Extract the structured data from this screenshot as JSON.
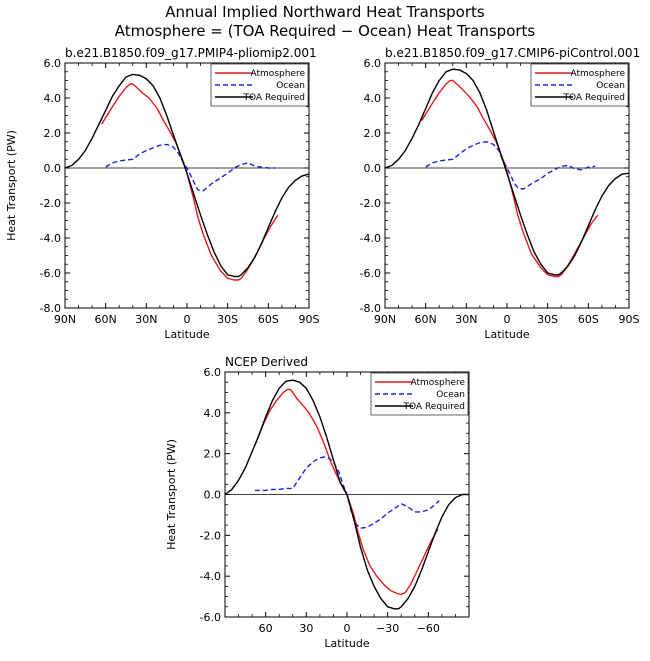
{
  "figure": {
    "title_line1": "Annual Implied Northward Heat Transports",
    "title_line2": "Atmosphere = (TOA Required − Ocean) Heat Transports"
  },
  "chart_data": [
    {
      "type": "line",
      "title": "b.e21.B1850.f09_g17.PMIP4-pliomip2.001",
      "xlabel": "Latitude",
      "ylabel": "Heat Transport (PW)",
      "xlim": [
        90,
        -90
      ],
      "ylim": [
        -8,
        6
      ],
      "xticks": [
        90,
        60,
        30,
        0,
        -30,
        -60,
        -90
      ],
      "xticklabels": [
        "90N",
        "60N",
        "30N",
        "0",
        "30S",
        "60S",
        "90S"
      ],
      "yticks": [
        6,
        4,
        2,
        0,
        -2,
        -4,
        -6,
        -8
      ],
      "yticklabels": [
        "6.0",
        "4.0",
        "2.0",
        "0.0",
        "-2.0",
        "-4.0",
        "-6.0",
        "-8.0"
      ],
      "zero_line": true,
      "legend": "top-right",
      "series": [
        {
          "name": "Atmosphere",
          "color": "#e41a1c",
          "dash": "solid",
          "x": [
            63,
            55,
            50,
            45,
            42,
            40,
            37,
            33,
            28,
            22,
            18,
            12,
            8,
            5,
            2,
            0,
            -2,
            -5,
            -8,
            -12,
            -18,
            -25,
            -30,
            -35,
            -38,
            -40,
            -43,
            -47,
            -52,
            -57,
            -62,
            -67
          ],
          "y": [
            2.5,
            3.5,
            4.1,
            4.6,
            4.8,
            4.8,
            4.6,
            4.3,
            4.0,
            3.4,
            2.8,
            2.0,
            1.4,
            0.8,
            0.2,
            -0.3,
            -0.9,
            -1.8,
            -2.8,
            -3.8,
            -5.0,
            -5.9,
            -6.3,
            -6.4,
            -6.4,
            -6.3,
            -6.0,
            -5.5,
            -4.8,
            -4.0,
            -3.3,
            -2.7
          ]
        },
        {
          "name": "Ocean",
          "color": "#1f1fe0",
          "dash": "dashed",
          "x": [
            60,
            55,
            50,
            45,
            40,
            35,
            30,
            25,
            20,
            15,
            10,
            6,
            4,
            2,
            0,
            -2,
            -5,
            -8,
            -12,
            -18,
            -25,
            -30,
            -35,
            -40,
            -45,
            -50,
            -55,
            -60,
            -65
          ],
          "y": [
            0.05,
            0.3,
            0.4,
            0.45,
            0.5,
            0.8,
            1.0,
            1.15,
            1.3,
            1.35,
            1.2,
            0.8,
            0.5,
            0.2,
            0.0,
            -0.3,
            -0.8,
            -1.25,
            -1.3,
            -0.9,
            -0.55,
            -0.3,
            0.0,
            0.2,
            0.3,
            0.1,
            0.05,
            0.0,
            0.0
          ]
        },
        {
          "name": "TOA Required",
          "color": "#000000",
          "dash": "solid",
          "x": [
            90,
            85,
            80,
            75,
            70,
            65,
            60,
            55,
            50,
            45,
            40,
            35,
            30,
            25,
            20,
            15,
            10,
            5,
            0,
            -5,
            -10,
            -15,
            -20,
            -25,
            -30,
            -35,
            -38,
            -40,
            -45,
            -50,
            -55,
            -60,
            -65,
            -70,
            -75,
            -80,
            -85,
            -90
          ],
          "y": [
            0.0,
            0.15,
            0.5,
            1.0,
            1.7,
            2.5,
            3.3,
            4.1,
            4.7,
            5.2,
            5.35,
            5.3,
            5.1,
            4.7,
            4.0,
            3.0,
            1.9,
            0.8,
            -0.3,
            -1.5,
            -2.7,
            -3.8,
            -4.8,
            -5.6,
            -6.1,
            -6.2,
            -6.2,
            -6.1,
            -5.7,
            -5.1,
            -4.3,
            -3.4,
            -2.5,
            -1.7,
            -1.1,
            -0.7,
            -0.45,
            -0.35
          ]
        }
      ]
    },
    {
      "type": "line",
      "title": "b.e21.B1850.f09_g17.CMIP6-piControl.001",
      "xlabel": "Latitude",
      "ylabel": "",
      "xlim": [
        90,
        -90
      ],
      "ylim": [
        -8,
        6
      ],
      "xticks": [
        90,
        60,
        30,
        0,
        -30,
        -60,
        -90
      ],
      "xticklabels": [
        "90N",
        "60N",
        "30N",
        "0",
        "30S",
        "60S",
        "90S"
      ],
      "yticks": [
        6,
        4,
        2,
        0,
        -2,
        -4,
        -6,
        -8
      ],
      "yticklabels": [
        "6.0",
        "4.0",
        "2.0",
        "0.0",
        "-2.0",
        "-4.0",
        "-6.0",
        "-8.0"
      ],
      "zero_line": true,
      "legend": "top-right",
      "series": [
        {
          "name": "Atmosphere",
          "color": "#e41a1c",
          "dash": "solid",
          "x": [
            63,
            55,
            50,
            45,
            42,
            40,
            37,
            33,
            28,
            22,
            18,
            12,
            8,
            5,
            2,
            0,
            -2,
            -5,
            -8,
            -12,
            -18,
            -25,
            -30,
            -35,
            -38,
            -40,
            -43,
            -47,
            -52,
            -57,
            -62,
            -67
          ],
          "y": [
            2.7,
            3.7,
            4.3,
            4.8,
            5.0,
            5.0,
            4.8,
            4.5,
            4.1,
            3.5,
            2.9,
            2.1,
            1.5,
            0.9,
            0.3,
            -0.2,
            -0.8,
            -1.7,
            -2.7,
            -3.7,
            -4.9,
            -5.7,
            -6.1,
            -6.2,
            -6.2,
            -6.1,
            -5.8,
            -5.3,
            -4.6,
            -3.9,
            -3.2,
            -2.7
          ]
        },
        {
          "name": "Ocean",
          "color": "#1f1fe0",
          "dash": "dashed",
          "x": [
            60,
            55,
            50,
            45,
            40,
            35,
            30,
            25,
            20,
            15,
            10,
            6,
            4,
            2,
            0,
            -2,
            -5,
            -8,
            -12,
            -18,
            -25,
            -30,
            -35,
            -40,
            -45,
            -50,
            -55,
            -60,
            -65
          ],
          "y": [
            0.05,
            0.3,
            0.4,
            0.45,
            0.5,
            0.8,
            1.1,
            1.3,
            1.45,
            1.5,
            1.35,
            1.0,
            0.6,
            0.3,
            0.0,
            -0.3,
            -0.8,
            -1.15,
            -1.2,
            -0.9,
            -0.6,
            -0.3,
            -0.1,
            0.1,
            0.15,
            -0.05,
            -0.1,
            0.05,
            0.1
          ]
        },
        {
          "name": "TOA Required",
          "color": "#000000",
          "dash": "solid",
          "x": [
            90,
            85,
            80,
            75,
            70,
            65,
            60,
            55,
            50,
            45,
            40,
            35,
            30,
            25,
            20,
            15,
            10,
            5,
            0,
            -5,
            -10,
            -15,
            -20,
            -25,
            -30,
            -35,
            -38,
            -40,
            -45,
            -50,
            -55,
            -60,
            -65,
            -70,
            -75,
            -80,
            -85,
            -90
          ],
          "y": [
            0.0,
            0.15,
            0.5,
            1.0,
            1.7,
            2.5,
            3.4,
            4.3,
            5.0,
            5.5,
            5.65,
            5.6,
            5.4,
            5.0,
            4.3,
            3.3,
            2.1,
            0.9,
            -0.3,
            -1.5,
            -2.7,
            -3.8,
            -4.8,
            -5.5,
            -6.0,
            -6.1,
            -6.1,
            -6.0,
            -5.6,
            -5.0,
            -4.2,
            -3.3,
            -2.4,
            -1.6,
            -1.0,
            -0.6,
            -0.35,
            -0.3
          ]
        }
      ]
    },
    {
      "type": "line",
      "title": "NCEP Derived",
      "xlabel": "Latitude",
      "ylabel": "Heat Transport (PW)",
      "xlim": [
        90,
        -90
      ],
      "ylim": [
        -6,
        6
      ],
      "xticks": [
        60,
        30,
        0,
        -30,
        -60
      ],
      "xticklabels": [
        "60",
        "30",
        "0",
        "−30",
        "−60"
      ],
      "yticks": [
        6,
        4,
        2,
        0,
        -2,
        -4,
        -6
      ],
      "yticklabels": [
        "6.0",
        "4.0",
        "2.0",
        "0.0",
        "-2.0",
        "-4.0",
        "-6.0"
      ],
      "zero_line": true,
      "legend": "top-right",
      "series": [
        {
          "name": "Atmosphere",
          "color": "#e41a1c",
          "dash": "solid",
          "x": [
            68,
            62,
            57,
            52,
            47,
            44,
            42,
            40,
            37,
            33,
            28,
            22,
            17,
            12,
            8,
            5,
            2,
            0,
            -2,
            -5,
            -8,
            -12,
            -17,
            -22,
            -27,
            -32,
            -37,
            -40,
            -43,
            -47,
            -52,
            -57,
            -62,
            -67
          ],
          "y": [
            2.4,
            3.4,
            4.1,
            4.6,
            5.0,
            5.15,
            5.15,
            5.0,
            4.7,
            4.4,
            4.0,
            3.3,
            2.5,
            1.6,
            1.0,
            0.6,
            0.2,
            0.0,
            -0.4,
            -1.0,
            -1.8,
            -2.7,
            -3.5,
            -4.0,
            -4.4,
            -4.7,
            -4.85,
            -4.9,
            -4.8,
            -4.4,
            -3.7,
            -3.0,
            -2.3,
            -1.7
          ]
        },
        {
          "name": "Ocean",
          "color": "#1f1fe0",
          "dash": "dashed",
          "x": [
            68,
            60,
            55,
            50,
            45,
            40,
            35,
            30,
            25,
            20,
            15,
            10,
            6,
            3,
            0,
            -3,
            -6,
            -10,
            -15,
            -20,
            -25,
            -30,
            -35,
            -40,
            -45,
            -50,
            -55,
            -60,
            -65,
            -68
          ],
          "y": [
            0.2,
            0.2,
            0.25,
            0.25,
            0.3,
            0.3,
            0.8,
            1.3,
            1.6,
            1.8,
            1.85,
            1.6,
            1.1,
            0.5,
            0.0,
            -0.8,
            -1.4,
            -1.65,
            -1.6,
            -1.4,
            -1.2,
            -0.9,
            -0.7,
            -0.45,
            -0.6,
            -0.85,
            -0.85,
            -0.75,
            -0.5,
            -0.3
          ]
        },
        {
          "name": "TOA Required",
          "color": "#000000",
          "dash": "solid",
          "x": [
            90,
            85,
            80,
            75,
            70,
            65,
            60,
            55,
            50,
            45,
            40,
            35,
            30,
            25,
            20,
            15,
            10,
            5,
            0,
            -5,
            -10,
            -15,
            -20,
            -25,
            -30,
            -35,
            -38,
            -40,
            -45,
            -50,
            -55,
            -60,
            -65,
            -70,
            -75,
            -80,
            -85,
            -90
          ],
          "y": [
            0.0,
            0.25,
            0.7,
            1.3,
            2.1,
            2.9,
            3.8,
            4.6,
            5.2,
            5.55,
            5.6,
            5.5,
            5.2,
            4.6,
            3.8,
            2.8,
            1.7,
            0.6,
            0.0,
            -1.2,
            -2.6,
            -3.7,
            -4.5,
            -5.1,
            -5.5,
            -5.6,
            -5.6,
            -5.5,
            -5.1,
            -4.5,
            -3.7,
            -2.8,
            -1.9,
            -1.1,
            -0.5,
            -0.15,
            0.0,
            0.0
          ]
        }
      ]
    }
  ]
}
